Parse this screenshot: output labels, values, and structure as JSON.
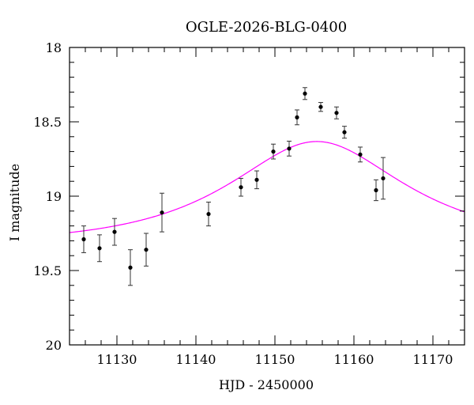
{
  "chart_data": {
    "type": "scatter",
    "title": "OGLE-2026-BLG-0400",
    "xlabel": "HJD - 2450000",
    "ylabel": "I magnitude",
    "xlim": [
      11124,
      11174
    ],
    "ylim": [
      18,
      20
    ],
    "y_inverted": true,
    "grid": false,
    "x_ticks": [
      11130,
      11140,
      11150,
      11160,
      11170
    ],
    "x_tick_labels": [
      "11130",
      "11140",
      "11150",
      "11160",
      "11170"
    ],
    "y_ticks": [
      18,
      18.5,
      19,
      19.5,
      20
    ],
    "y_tick_labels": [
      "18",
      "18.5",
      "19",
      "19.5",
      "20"
    ],
    "colors": {
      "model": "#ff00ff",
      "points": "#000000",
      "axes": "#000000"
    },
    "series": [
      {
        "type": "errorbar",
        "points": [
          {
            "x": 11125.8,
            "y": 19.29,
            "err": 0.09
          },
          {
            "x": 11127.8,
            "y": 19.35,
            "err": 0.09
          },
          {
            "x": 11129.7,
            "y": 19.24,
            "err": 0.09
          },
          {
            "x": 11131.7,
            "y": 19.48,
            "err": 0.12
          },
          {
            "x": 11133.7,
            "y": 19.36,
            "err": 0.11
          },
          {
            "x": 11135.7,
            "y": 19.11,
            "err": 0.13
          },
          {
            "x": 11141.6,
            "y": 19.12,
            "err": 0.08
          },
          {
            "x": 11145.7,
            "y": 18.94,
            "err": 0.06
          },
          {
            "x": 11147.7,
            "y": 18.89,
            "err": 0.06
          },
          {
            "x": 11149.8,
            "y": 18.7,
            "err": 0.05
          },
          {
            "x": 11151.8,
            "y": 18.68,
            "err": 0.05
          },
          {
            "x": 11152.8,
            "y": 18.47,
            "err": 0.05
          },
          {
            "x": 11153.8,
            "y": 18.31,
            "err": 0.04
          },
          {
            "x": 11155.8,
            "y": 18.4,
            "err": 0.03
          },
          {
            "x": 11157.8,
            "y": 18.44,
            "err": 0.04
          },
          {
            "x": 11158.8,
            "y": 18.57,
            "err": 0.04
          },
          {
            "x": 11160.8,
            "y": 18.72,
            "err": 0.05
          },
          {
            "x": 11162.8,
            "y": 18.96,
            "err": 0.07
          },
          {
            "x": 11163.7,
            "y": 18.88,
            "err": 0.14
          }
        ]
      },
      {
        "type": "line",
        "model": {
          "t0": 11155.3,
          "tE": 17.5,
          "u0": 0.6,
          "I_base": 19.32
        }
      }
    ]
  }
}
